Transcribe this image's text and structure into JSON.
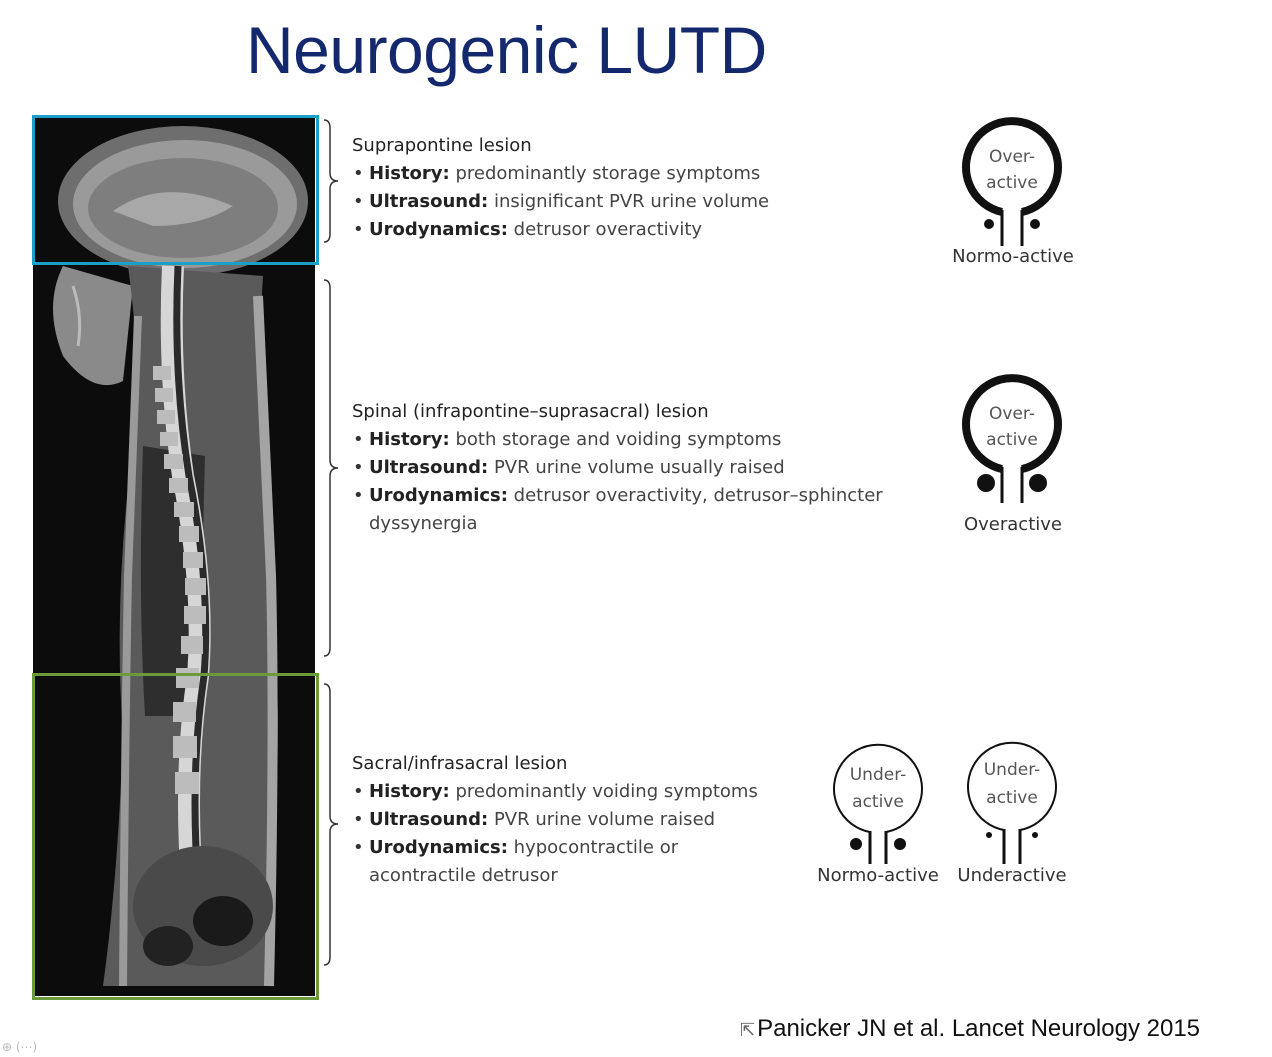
{
  "slide": {
    "title": "Neurogenic LUTD",
    "citation": "Panicker JN et al. Lancet Neurology 2015",
    "zoom_controls": "⊕ (⋯)"
  },
  "sections": [
    {
      "heading": "Suprapontine lesion",
      "bullets": [
        {
          "term": "History:",
          "text": " predominantly storage symptoms"
        },
        {
          "term": "Ultrasound:",
          "text": " insignificant PVR urine volume"
        },
        {
          "term": "Urodynamics:",
          "text": " detrusor overactivity"
        }
      ],
      "diagrams": [
        {
          "detrusor_1": "Over-",
          "detrusor_2": "active",
          "sphincter": "Normo-active"
        }
      ]
    },
    {
      "heading": "Spinal (infrapontine–suprasacral) lesion",
      "bullets": [
        {
          "term": "History:",
          "text": " both storage and voiding symptoms"
        },
        {
          "term": "Ultrasound:",
          "text": " PVR urine volume usually raised"
        },
        {
          "term": "Urodynamics:",
          "text": " detrusor overactivity, detrusor–sphincter",
          "cont": "dyssynergia"
        }
      ],
      "diagrams": [
        {
          "detrusor_1": "Over-",
          "detrusor_2": "active",
          "sphincter": "Overactive"
        }
      ]
    },
    {
      "heading": "Sacral/infrasacral lesion",
      "bullets": [
        {
          "term": "History:",
          "text": " predominantly voiding symptoms"
        },
        {
          "term": "Ultrasound:",
          "text": " PVR urine volume raised"
        },
        {
          "term": "Urodynamics:",
          "text": " hypocontractile or",
          "cont": "acontractile detrusor"
        }
      ],
      "diagrams": [
        {
          "detrusor_1": "Under-",
          "detrusor_2": "active",
          "sphincter": "Normo-active"
        },
        {
          "detrusor_1": "Under-",
          "detrusor_2": "active",
          "sphincter": "Underactive"
        }
      ]
    }
  ],
  "colors": {
    "title": "#14286e",
    "box_supra": "#1aa0c8",
    "box_sacral": "#6a9a3c"
  }
}
